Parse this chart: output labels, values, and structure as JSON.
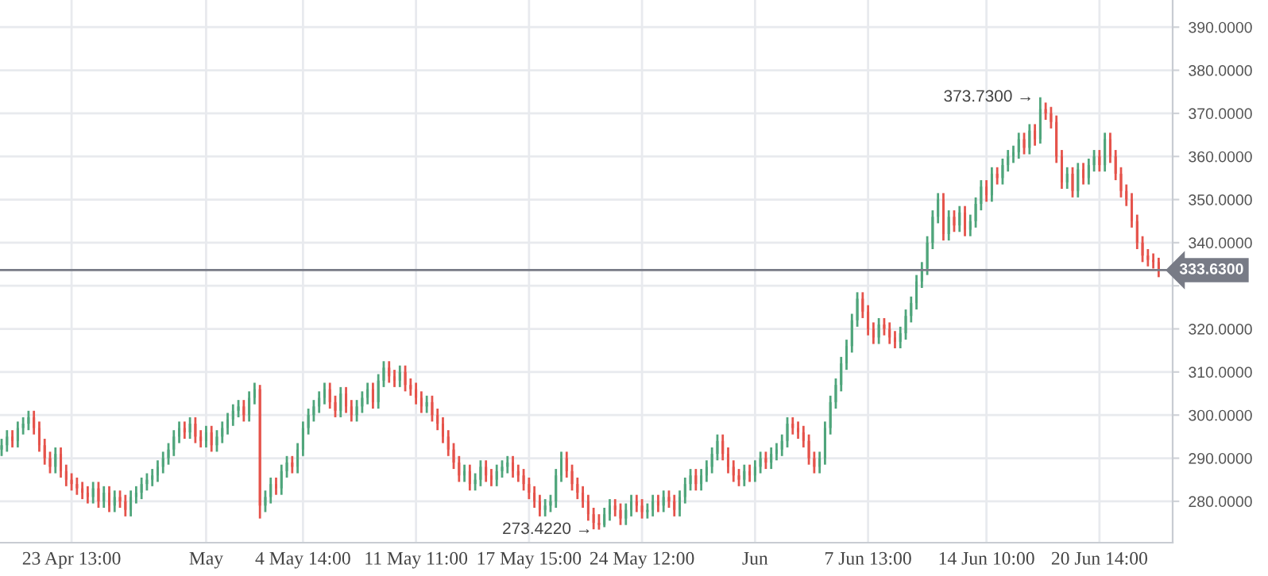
{
  "chart_data": {
    "type": "candlestick",
    "categories": [
      null,
      null,
      null,
      null,
      null,
      null,
      null,
      null,
      null,
      null,
      null,
      null,
      null,
      "23 Apr 13:00",
      null,
      null,
      null,
      null,
      null,
      null,
      null,
      null,
      null,
      null,
      null,
      null,
      null,
      null,
      null,
      null,
      null,
      null,
      null,
      null,
      null,
      null,
      null,
      null,
      "May",
      null,
      null,
      null,
      null,
      null,
      null,
      null,
      null,
      null,
      null,
      null,
      null,
      null,
      null,
      null,
      null,
      null,
      "4 May 14:00",
      null,
      null,
      null,
      null,
      null,
      null,
      null,
      null,
      null,
      null,
      null,
      null,
      null,
      null,
      null,
      null,
      null,
      null,
      null,
      null,
      "11 May 11:00",
      null,
      null,
      null,
      null,
      null,
      null,
      null,
      null,
      null,
      null,
      null,
      null,
      null,
      null,
      null,
      null,
      null,
      null,
      null,
      null,
      "17 May 15:00",
      null,
      null,
      null,
      null,
      null,
      null,
      null,
      null,
      null,
      null,
      null,
      null,
      null,
      null,
      null,
      null,
      null,
      null,
      null,
      null,
      "24 May 12:00",
      null,
      null,
      null,
      null,
      null,
      null,
      null,
      null,
      null,
      null,
      null,
      null,
      null,
      null,
      null,
      null,
      null,
      null,
      null,
      null,
      "Jun",
      null,
      null,
      null,
      null,
      null,
      null,
      null,
      null,
      null,
      null,
      null,
      null,
      null,
      null,
      null,
      null,
      null,
      null,
      null,
      null,
      "7 Jun 13:00",
      null,
      null,
      null,
      null,
      null,
      null,
      null,
      null,
      null,
      null,
      null,
      null,
      null,
      null,
      null,
      null,
      null,
      null,
      null,
      null,
      null,
      "14 Jun 10:00",
      null,
      null,
      null,
      null,
      null,
      null,
      null,
      null,
      null,
      null,
      null,
      null,
      null,
      null,
      null,
      null,
      null,
      null,
      null,
      null,
      "20 Jun 14:00",
      null,
      null,
      null,
      null,
      null,
      null,
      null,
      null,
      null,
      null,
      null
    ],
    "ohlc": [
      [
        292,
        294.5,
        290.5,
        293
      ],
      [
        293,
        296.5,
        291.5,
        295
      ],
      [
        295,
        296.5,
        292.5,
        294
      ],
      [
        294,
        298.5,
        292.5,
        297
      ],
      [
        297,
        299.5,
        295.5,
        298
      ],
      [
        298,
        301,
        296.5,
        299.5
      ],
      [
        299.5,
        301,
        295.5,
        297
      ],
      [
        297,
        298.5,
        291.5,
        293
      ],
      [
        293,
        294.5,
        288.5,
        290
      ],
      [
        290,
        291.5,
        286.5,
        288
      ],
      [
        288,
        292.5,
        286.5,
        291
      ],
      [
        291,
        292.5,
        285.5,
        287
      ],
      [
        287,
        288.5,
        283.5,
        285
      ],
      [
        285,
        286.5,
        282.5,
        284
      ],
      [
        284,
        285.5,
        281.5,
        283
      ],
      [
        283,
        284.5,
        280.5,
        282
      ],
      [
        282,
        283.5,
        279.5,
        281
      ],
      [
        281,
        284.5,
        279.5,
        283
      ],
      [
        283,
        284.5,
        278.5,
        280
      ],
      [
        280,
        283.5,
        278.5,
        282
      ],
      [
        282,
        283.5,
        277.5,
        279
      ],
      [
        279,
        282.5,
        277.5,
        281
      ],
      [
        281,
        282.5,
        278.5,
        280
      ],
      [
        280,
        281.5,
        276.5,
        278
      ],
      [
        278,
        282.5,
        276.5,
        281
      ],
      [
        281,
        283.5,
        279.5,
        282
      ],
      [
        282,
        285.5,
        280.5,
        284
      ],
      [
        284,
        286.5,
        282.5,
        285
      ],
      [
        285,
        287.5,
        283.5,
        286
      ],
      [
        286,
        289.5,
        284.5,
        288
      ],
      [
        288,
        291.5,
        286.5,
        290
      ],
      [
        290,
        293.5,
        288.5,
        292
      ],
      [
        292,
        296.5,
        290.5,
        295
      ],
      [
        295,
        298.5,
        293.5,
        297
      ],
      [
        297,
        298.5,
        294.5,
        296
      ],
      [
        296,
        299.5,
        294.5,
        298
      ],
      [
        298,
        299.5,
        293.5,
        295
      ],
      [
        295,
        296.5,
        292.5,
        294
      ],
      [
        294,
        297.5,
        292.5,
        296
      ],
      [
        296,
        297.5,
        291.5,
        293
      ],
      [
        293,
        296.5,
        291.5,
        295
      ],
      [
        295,
        298.5,
        293.5,
        297
      ],
      [
        297,
        300.5,
        295.5,
        299
      ],
      [
        299,
        302.5,
        297.5,
        301
      ],
      [
        301,
        303.5,
        299.5,
        302
      ],
      [
        302,
        303.5,
        298.5,
        300
      ],
      [
        300,
        305.5,
        298.5,
        304
      ],
      [
        304,
        307.5,
        302.5,
        306
      ],
      [
        306,
        307,
        276,
        279
      ],
      [
        279,
        282.5,
        277.5,
        281
      ],
      [
        281,
        285.5,
        279.5,
        284
      ],
      [
        284,
        285.5,
        281.5,
        283
      ],
      [
        283,
        288.5,
        281.5,
        287
      ],
      [
        287,
        290.5,
        285.5,
        289
      ],
      [
        289,
        290.5,
        286.5,
        288
      ],
      [
        288,
        293.5,
        286.5,
        292
      ],
      [
        292,
        298.5,
        290.5,
        297
      ],
      [
        297,
        301.5,
        295.5,
        300
      ],
      [
        300,
        303.5,
        298.5,
        302
      ],
      [
        302,
        305.5,
        300.5,
        304
      ],
      [
        304,
        307.5,
        302.5,
        306
      ],
      [
        306,
        307.5,
        301.5,
        303
      ],
      [
        303,
        304.5,
        299.5,
        301
      ],
      [
        301,
        306.5,
        299.5,
        305
      ],
      [
        305,
        306.5,
        300.5,
        302
      ],
      [
        302,
        303.5,
        298.5,
        300
      ],
      [
        300,
        303.5,
        298.5,
        302
      ],
      [
        302,
        305.5,
        300.5,
        304
      ],
      [
        304,
        307.5,
        302.5,
        306
      ],
      [
        306,
        307.5,
        301.5,
        303
      ],
      [
        303,
        309.5,
        301.5,
        308
      ],
      [
        308,
        312.5,
        306.5,
        311
      ],
      [
        311,
        312.5,
        307.5,
        309
      ],
      [
        309,
        310.5,
        306.5,
        308
      ],
      [
        308,
        311.5,
        306.5,
        310
      ],
      [
        310,
        311.5,
        305.5,
        307
      ],
      [
        307,
        308.5,
        304.5,
        306
      ],
      [
        306,
        307.5,
        302.5,
        304
      ],
      [
        304,
        305.5,
        300.5,
        302
      ],
      [
        302,
        304.5,
        300.5,
        303
      ],
      [
        303,
        304.5,
        298.5,
        300
      ],
      [
        300,
        301.5,
        296.5,
        298
      ],
      [
        298,
        299.5,
        293.5,
        295
      ],
      [
        295,
        296.5,
        290.5,
        292
      ],
      [
        292,
        293.5,
        287.5,
        289
      ],
      [
        289,
        290.5,
        284.5,
        286
      ],
      [
        286,
        288.5,
        284.5,
        287
      ],
      [
        287,
        288.5,
        282.5,
        284
      ],
      [
        284,
        286.5,
        282.5,
        285
      ],
      [
        285,
        289.5,
        283.5,
        288
      ],
      [
        288,
        289.5,
        284.5,
        286
      ],
      [
        286,
        287.5,
        283.5,
        285
      ],
      [
        285,
        288.5,
        283.5,
        287
      ],
      [
        287,
        289.5,
        285.5,
        288
      ],
      [
        288,
        290.5,
        286.5,
        289
      ],
      [
        289,
        290.5,
        285.5,
        287
      ],
      [
        287,
        288.5,
        284.5,
        286
      ],
      [
        286,
        287.5,
        282.5,
        284
      ],
      [
        284,
        285.5,
        280.5,
        282
      ],
      [
        282,
        283.5,
        278.5,
        280
      ],
      [
        280,
        281.5,
        276.5,
        278
      ],
      [
        278,
        280.5,
        276.5,
        279
      ],
      [
        279,
        281.5,
        277.5,
        280
      ],
      [
        280,
        287.5,
        278.5,
        286
      ],
      [
        286,
        291.5,
        284.5,
        290
      ],
      [
        290,
        291.5,
        285.5,
        287
      ],
      [
        287,
        288.5,
        282.5,
        284
      ],
      [
        284,
        285.5,
        280.5,
        282
      ],
      [
        282,
        283.5,
        278.5,
        280
      ],
      [
        280,
        281.5,
        275.5,
        277
      ],
      [
        277,
        278.5,
        273.5,
        275
      ],
      [
        275,
        277,
        273.422,
        274.5
      ],
      [
        274.5,
        278.5,
        274,
        277
      ],
      [
        277,
        280.5,
        275.5,
        279
      ],
      [
        279,
        280.5,
        276.5,
        278
      ],
      [
        278,
        279.5,
        274.5,
        276
      ],
      [
        276,
        279.5,
        274.5,
        278
      ],
      [
        278,
        281.5,
        276.5,
        280
      ],
      [
        280,
        281.5,
        277.5,
        279
      ],
      [
        279,
        280.5,
        276,
        277.5
      ],
      [
        277.5,
        279.5,
        276,
        278
      ],
      [
        278,
        281.5,
        276.5,
        280
      ],
      [
        280,
        281.5,
        277.5,
        279
      ],
      [
        279,
        282.5,
        277.5,
        281
      ],
      [
        281,
        282.5,
        278.5,
        280
      ],
      [
        280,
        281.5,
        276.5,
        278
      ],
      [
        278,
        282.5,
        276.5,
        281
      ],
      [
        281,
        285.5,
        279.5,
        284
      ],
      [
        284,
        287.5,
        282.5,
        286
      ],
      [
        286,
        287.5,
        282.5,
        284
      ],
      [
        284,
        287.5,
        282.5,
        286
      ],
      [
        286,
        289.5,
        284.5,
        288
      ],
      [
        288,
        292.5,
        286.5,
        291
      ],
      [
        291,
        295.5,
        289.5,
        294
      ],
      [
        294,
        295.5,
        289.5,
        291
      ],
      [
        291,
        292.5,
        286.5,
        288
      ],
      [
        288,
        289.5,
        284.5,
        286
      ],
      [
        286,
        287.5,
        283.5,
        285
      ],
      [
        285,
        288.5,
        283.5,
        287
      ],
      [
        287,
        288.5,
        284.5,
        286
      ],
      [
        286,
        289.5,
        284.5,
        288
      ],
      [
        288,
        291.5,
        286.5,
        290
      ],
      [
        290,
        291.5,
        287.5,
        289
      ],
      [
        289,
        292.5,
        287.5,
        291
      ],
      [
        291,
        293.5,
        289.5,
        292
      ],
      [
        292,
        295.5,
        290.5,
        294
      ],
      [
        294,
        299.5,
        292.5,
        298
      ],
      [
        298,
        299.5,
        295.5,
        297
      ],
      [
        297,
        298.5,
        294.5,
        296
      ],
      [
        296,
        297.5,
        292.5,
        294
      ],
      [
        294,
        295.5,
        288.5,
        290
      ],
      [
        290,
        291.5,
        286.5,
        288
      ],
      [
        288,
        291.5,
        286.5,
        290
      ],
      [
        290,
        298.5,
        288.5,
        297
      ],
      [
        297,
        304.5,
        295.5,
        303
      ],
      [
        303,
        308.5,
        301.5,
        307
      ],
      [
        307,
        313.5,
        305.5,
        312
      ],
      [
        312,
        317.5,
        310.5,
        316
      ],
      [
        316,
        323.5,
        314.5,
        322
      ],
      [
        322,
        328.5,
        320.5,
        327
      ],
      [
        327,
        328.5,
        322.5,
        324
      ],
      [
        324,
        325.5,
        318.5,
        320
      ],
      [
        320,
        321.5,
        316.5,
        318
      ],
      [
        318,
        322.5,
        316.5,
        321
      ],
      [
        321,
        322.5,
        318.5,
        320
      ],
      [
        320,
        321.5,
        316.5,
        318
      ],
      [
        318,
        319.5,
        315.5,
        317
      ],
      [
        317,
        320.5,
        315.5,
        319
      ],
      [
        319,
        324.5,
        317.5,
        323
      ],
      [
        323,
        327.5,
        321.5,
        326
      ],
      [
        326,
        332.5,
        324.5,
        331
      ],
      [
        331,
        335.5,
        329.5,
        334
      ],
      [
        334,
        341.5,
        332.5,
        340
      ],
      [
        340,
        347.5,
        338.5,
        346
      ],
      [
        346,
        351.5,
        344.5,
        350
      ],
      [
        350,
        351.5,
        340.5,
        342
      ],
      [
        342,
        347.5,
        340.5,
        346
      ],
      [
        346,
        347.5,
        342.5,
        344
      ],
      [
        344,
        348.5,
        342.5,
        347
      ],
      [
        347,
        348.5,
        341.5,
        343
      ],
      [
        343,
        346.5,
        341.5,
        345
      ],
      [
        345,
        350.5,
        343.5,
        349
      ],
      [
        349,
        354.5,
        347.5,
        353
      ],
      [
        353,
        354.5,
        349.5,
        351
      ],
      [
        351,
        357.5,
        349.5,
        356
      ],
      [
        356,
        357.5,
        353.5,
        355
      ],
      [
        355,
        359.5,
        353.5,
        358
      ],
      [
        358,
        361.5,
        356.5,
        360
      ],
      [
        360,
        362.5,
        358.5,
        361
      ],
      [
        361,
        365.5,
        359.5,
        364
      ],
      [
        364,
        365.5,
        360.5,
        362
      ],
      [
        362,
        367.5,
        360.5,
        366
      ],
      [
        366,
        367.5,
        362.5,
        364
      ],
      [
        364,
        373.73,
        363,
        371
      ],
      [
        371,
        372.5,
        368.5,
        370
      ],
      [
        370,
        371.5,
        366.5,
        368
      ],
      [
        368,
        369.5,
        358.5,
        360
      ],
      [
        360,
        361.5,
        352.5,
        354
      ],
      [
        354,
        357.5,
        352.5,
        356
      ],
      [
        356,
        357.5,
        350.5,
        352
      ],
      [
        352,
        358.5,
        350.5,
        357
      ],
      [
        357,
        358.5,
        353.5,
        355
      ],
      [
        355,
        359.5,
        353.5,
        358
      ],
      [
        358,
        361.5,
        356.5,
        360
      ],
      [
        360,
        361.5,
        356.5,
        358
      ],
      [
        358,
        365.5,
        356.5,
        364
      ],
      [
        364,
        365.5,
        358.5,
        360
      ],
      [
        360,
        361.5,
        354.5,
        356
      ],
      [
        356,
        357.5,
        350.5,
        352
      ],
      [
        352,
        353.5,
        348.5,
        350
      ],
      [
        350,
        351.5,
        343.5,
        345
      ],
      [
        345,
        346.5,
        338.5,
        340
      ],
      [
        340,
        341.5,
        335.5,
        337
      ],
      [
        337,
        338.5,
        334.5,
        336
      ],
      [
        336,
        337.5,
        334,
        335.5
      ],
      [
        335.5,
        336.5,
        332,
        333.63
      ]
    ],
    "colors": [
      "#4fa57b",
      "#4fa57b",
      "#e5534b",
      "#4fa57b",
      "#4fa57b",
      "#4fa57b",
      "#e5534b",
      "#e5534b",
      "#e5534b",
      "#e5534b",
      "#4fa57b",
      "#e5534b",
      "#e5534b",
      "#e5534b",
      "#e5534b",
      "#e5534b",
      "#e5534b",
      "#4fa57b",
      "#e5534b",
      "#4fa57b",
      "#e5534b",
      "#4fa57b",
      "#e5534b",
      "#e5534b",
      "#4fa57b",
      "#4fa57b",
      "#4fa57b",
      "#4fa57b",
      "#4fa57b",
      "#4fa57b",
      "#4fa57b",
      "#4fa57b",
      "#4fa57b",
      "#4fa57b",
      "#e5534b",
      "#4fa57b",
      "#e5534b",
      "#e5534b",
      "#4fa57b",
      "#e5534b",
      "#4fa57b",
      "#4fa57b",
      "#4fa57b",
      "#4fa57b",
      "#4fa57b",
      "#e5534b",
      "#4fa57b",
      "#4fa57b",
      "#e5534b",
      "#4fa57b",
      "#4fa57b",
      "#e5534b",
      "#4fa57b",
      "#4fa57b",
      "#e5534b",
      "#4fa57b",
      "#4fa57b",
      "#4fa57b",
      "#4fa57b",
      "#4fa57b",
      "#4fa57b",
      "#e5534b",
      "#e5534b",
      "#4fa57b",
      "#e5534b",
      "#e5534b",
      "#4fa57b",
      "#4fa57b",
      "#4fa57b",
      "#e5534b",
      "#4fa57b",
      "#4fa57b",
      "#e5534b",
      "#e5534b",
      "#4fa57b",
      "#e5534b",
      "#e5534b",
      "#e5534b",
      "#e5534b",
      "#4fa57b",
      "#e5534b",
      "#e5534b",
      "#e5534b",
      "#e5534b",
      "#e5534b",
      "#e5534b",
      "#4fa57b",
      "#e5534b",
      "#4fa57b",
      "#4fa57b",
      "#e5534b",
      "#e5534b",
      "#4fa57b",
      "#4fa57b",
      "#4fa57b",
      "#e5534b",
      "#e5534b",
      "#e5534b",
      "#e5534b",
      "#e5534b",
      "#e5534b",
      "#4fa57b",
      "#4fa57b",
      "#4fa57b",
      "#4fa57b",
      "#e5534b",
      "#e5534b",
      "#e5534b",
      "#e5534b",
      "#e5534b",
      "#e5534b",
      "#e5534b",
      "#4fa57b",
      "#4fa57b",
      "#e5534b",
      "#e5534b",
      "#4fa57b",
      "#4fa57b",
      "#e5534b",
      "#e5534b",
      "#4fa57b",
      "#4fa57b",
      "#e5534b",
      "#4fa57b",
      "#e5534b",
      "#e5534b",
      "#4fa57b",
      "#4fa57b",
      "#4fa57b",
      "#e5534b",
      "#4fa57b",
      "#4fa57b",
      "#4fa57b",
      "#4fa57b",
      "#e5534b",
      "#e5534b",
      "#e5534b",
      "#e5534b",
      "#4fa57b",
      "#e5534b",
      "#4fa57b",
      "#4fa57b",
      "#e5534b",
      "#4fa57b",
      "#4fa57b",
      "#4fa57b",
      "#4fa57b",
      "#e5534b",
      "#e5534b",
      "#e5534b",
      "#e5534b",
      "#e5534b",
      "#4fa57b",
      "#4fa57b",
      "#4fa57b",
      "#4fa57b",
      "#4fa57b",
      "#4fa57b",
      "#4fa57b",
      "#4fa57b",
      "#e5534b",
      "#e5534b",
      "#e5534b",
      "#4fa57b",
      "#e5534b",
      "#e5534b",
      "#e5534b",
      "#4fa57b",
      "#4fa57b",
      "#4fa57b",
      "#4fa57b",
      "#4fa57b",
      "#4fa57b",
      "#4fa57b",
      "#4fa57b",
      "#e5534b",
      "#4fa57b",
      "#e5534b",
      "#4fa57b",
      "#e5534b",
      "#4fa57b",
      "#4fa57b",
      "#4fa57b",
      "#e5534b",
      "#4fa57b",
      "#e5534b",
      "#4fa57b",
      "#4fa57b",
      "#4fa57b",
      "#4fa57b",
      "#e5534b",
      "#4fa57b",
      "#e5534b",
      "#4fa57b",
      "#e5534b",
      "#e5534b",
      "#e5534b",
      "#e5534b",
      "#4fa57b",
      "#e5534b",
      "#4fa57b",
      "#e5534b",
      "#4fa57b",
      "#4fa57b",
      "#e5534b",
      "#4fa57b",
      "#e5534b",
      "#e5534b",
      "#e5534b",
      "#e5534b",
      "#e5534b",
      "#e5534b",
      "#e5534b",
      "#e5534b",
      "#e5534b",
      "#e5534b"
    ],
    "ylim": [
      270.4,
      396.3
    ],
    "yticks": [
      {
        "value": 280,
        "label": "280.0000"
      },
      {
        "value": 290,
        "label": "290.0000"
      },
      {
        "value": 300,
        "label": "300.0000"
      },
      {
        "value": 310,
        "label": "310.0000"
      },
      {
        "value": 320,
        "label": "320.0000"
      },
      {
        "value": 330,
        "label": null
      },
      {
        "value": 340,
        "label": "340.0000"
      },
      {
        "value": 350,
        "label": "350.0000"
      },
      {
        "value": 360,
        "label": "360.0000"
      },
      {
        "value": 370,
        "label": "370.0000"
      },
      {
        "value": 380,
        "label": "380.0000"
      },
      {
        "value": 390,
        "label": "390.0000"
      }
    ],
    "ref_lines": [
      {
        "axis": "y",
        "value": 333.63,
        "label": "333.6300",
        "color": "#787b86"
      }
    ],
    "annotations": [
      "373.7300 →",
      "273.4220 →"
    ],
    "grid": true
  }
}
